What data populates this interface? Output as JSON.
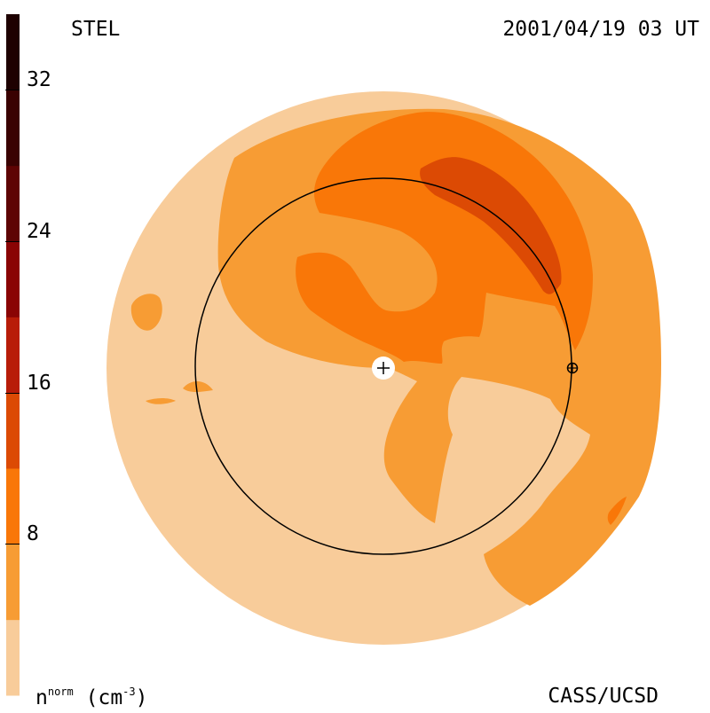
{
  "title": {
    "source": "STEL",
    "datetime": "2001/04/19 03 UT",
    "credit": "CASS/UCSD"
  },
  "colorbar": {
    "units_base": "n",
    "units_sup": "norm",
    "units_paren_open": "(cm",
    "units_paren_sup": "-3",
    "units_paren_close": ")",
    "ticks": [
      "8",
      "16",
      "24",
      "32"
    ],
    "range": [
      0,
      36
    ],
    "levels": [
      {
        "from": 0,
        "to": 4,
        "color": "#f8cc9a"
      },
      {
        "from": 4,
        "to": 8,
        "color": "#f79c34"
      },
      {
        "from": 8,
        "to": 12,
        "color": "#f97708"
      },
      {
        "from": 12,
        "to": 16,
        "color": "#dc4a04"
      },
      {
        "from": 16,
        "to": 20,
        "color": "#b81c08"
      },
      {
        "from": 20,
        "to": 24,
        "color": "#8a0404"
      },
      {
        "from": 24,
        "to": 28,
        "color": "#5e0404"
      },
      {
        "from": 28,
        "to": 32,
        "color": "#3a0202"
      },
      {
        "from": 32,
        "to": 36,
        "color": "#1e0101"
      }
    ]
  },
  "map": {
    "background_color": "#f8cc9a",
    "region_colors": {
      "mid": "#f79c34",
      "high": "#f97708",
      "peak": "#dc4a04",
      "marker_fill": "#ffffff",
      "line_color": "#000000"
    },
    "markers": [
      {
        "name": "sun",
        "symbol": "plus-circle"
      },
      {
        "name": "earth",
        "symbol": "circle-plus"
      }
    ]
  }
}
